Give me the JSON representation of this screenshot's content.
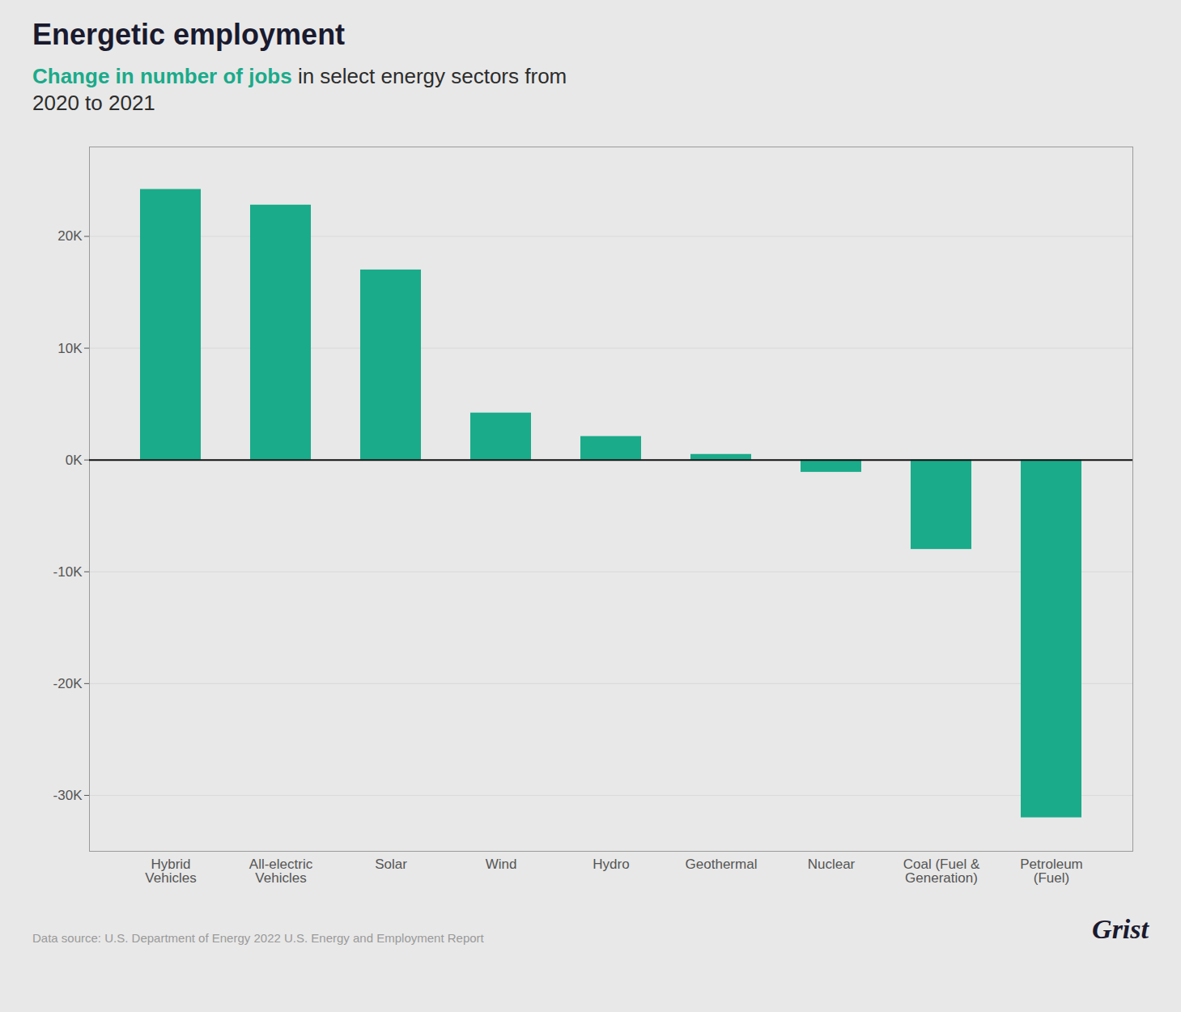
{
  "chart_data": {
    "type": "bar",
    "title": "Energetic employment",
    "subtitle": [
      "Change in number of jobs",
      "in select energy sectors from",
      "2020 to 2021"
    ],
    "categories": [
      "Hybrid\nVehicles",
      "All-electric\nVehicles",
      "Solar",
      "Wind",
      "Hydro",
      "Geothermal",
      "Nuclear",
      "Coal (Fuel &\nGeneration)",
      "Petroleum\n(Fuel)"
    ],
    "values": [
      24200,
      22800,
      17000,
      4200,
      2100,
      500,
      -1100,
      -8000,
      -32000
    ],
    "color": "#1aab8a",
    "ylim": [
      -35000,
      28000
    ],
    "yticks": [
      {
        "value": -30000,
        "label": "-30K"
      },
      {
        "value": -20000,
        "label": "-20K"
      },
      {
        "value": -10000,
        "label": "-10K"
      },
      {
        "value": 0,
        "label": "0K"
      },
      {
        "value": 10000,
        "label": "10K"
      },
      {
        "value": 20000,
        "label": "20K"
      }
    ],
    "grid": true,
    "annotations": [
      "Data source: U.S. Department of Energy 2022 U.S. Energy and Employment Report",
      "Grist"
    ]
  }
}
